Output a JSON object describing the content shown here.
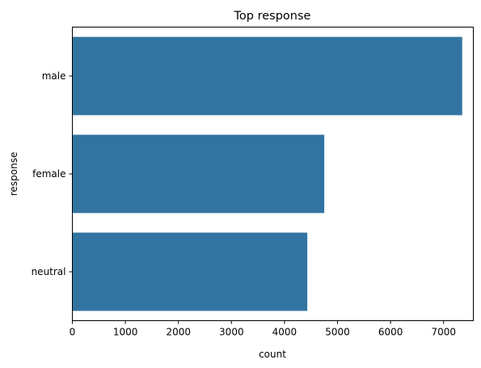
{
  "chart_data": {
    "type": "bar",
    "orientation": "horizontal",
    "title": "Top  response",
    "xlabel": "count",
    "ylabel": "response",
    "categories": [
      "male",
      "female",
      "neutral"
    ],
    "values": [
      7350,
      4750,
      4430
    ],
    "xlim": [
      0,
      7560
    ],
    "xticks": [
      0,
      1000,
      2000,
      3000,
      4000,
      5000,
      6000,
      7000
    ],
    "bar_color": "#3274a1",
    "grid": false,
    "legend": "none"
  }
}
